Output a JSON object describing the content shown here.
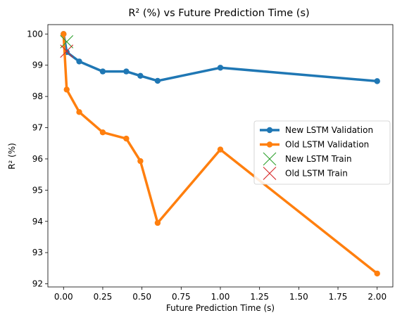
{
  "chart_data": {
    "type": "line",
    "title": "R² (%) vs Future Prediction Time (s)",
    "xlabel": "Future Prediction Time (s)",
    "ylabel": "R² (%)",
    "xlim": [
      -0.1,
      2.1
    ],
    "ylim": [
      91.9,
      100.3
    ],
    "xticks": [
      "0.00",
      "0.25",
      "0.50",
      "0.75",
      "1.00",
      "1.25",
      "1.50",
      "1.75",
      "2.00"
    ],
    "yticks": [
      "92",
      "93",
      "94",
      "95",
      "96",
      "97",
      "98",
      "99",
      "100"
    ],
    "grid": false,
    "legend_position": "center-right",
    "series": [
      {
        "name": "New LSTM Validation",
        "color": "#1f77b4",
        "marker": "circle",
        "x": [
          0.0,
          0.02,
          0.1,
          0.25,
          0.4,
          0.49,
          0.6,
          1.0,
          2.0
        ],
        "y": [
          100.0,
          99.42,
          99.12,
          98.8,
          98.8,
          98.66,
          98.5,
          98.92,
          98.49
        ]
      },
      {
        "name": "Old LSTM Validation",
        "color": "#ff7f0e",
        "marker": "circle",
        "x": [
          0.0,
          0.02,
          0.1,
          0.25,
          0.4,
          0.49,
          0.6,
          1.0,
          2.0
        ],
        "y": [
          100.0,
          98.22,
          97.5,
          96.85,
          96.65,
          95.93,
          93.95,
          96.3,
          92.33
        ]
      },
      {
        "name": "New LSTM Train",
        "color": "#2ca02c",
        "marker": "x",
        "x": [
          0.02
        ],
        "y": [
          99.75
        ]
      },
      {
        "name": "Old LSTM Train",
        "color": "#d62728",
        "marker": "x",
        "x": [
          0.02
        ],
        "y": [
          99.45
        ]
      }
    ]
  }
}
